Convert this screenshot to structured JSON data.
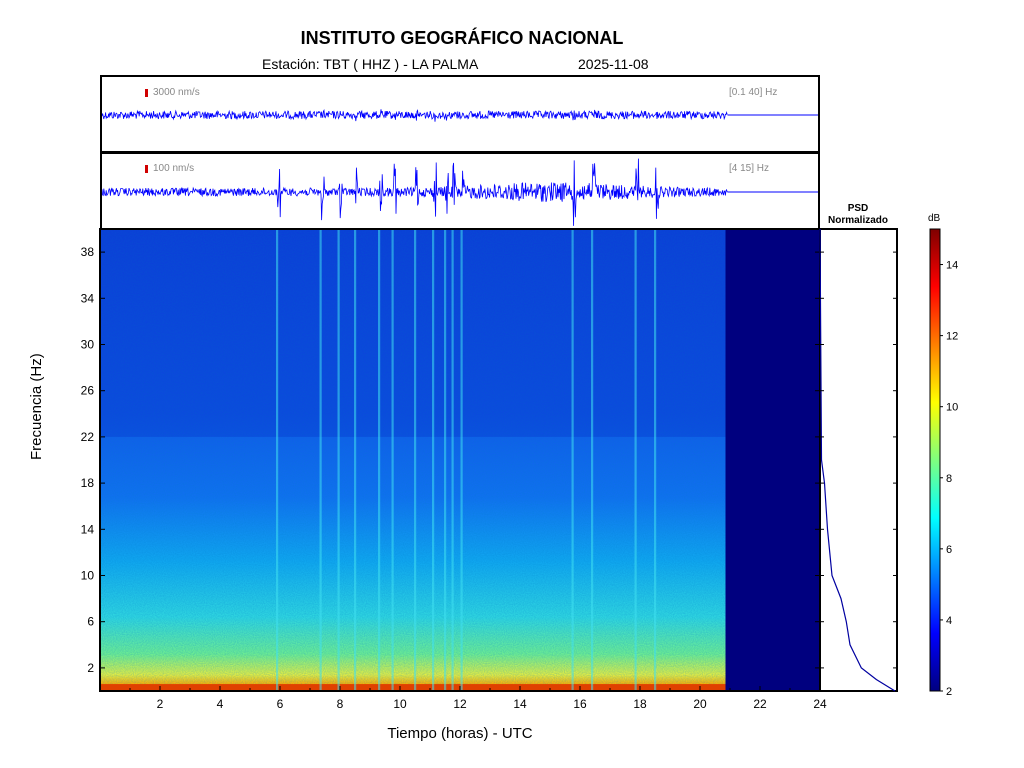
{
  "header": {
    "title": "INSTITUTO GEOGRÁFICO NACIONAL",
    "station": "Estación:  TBT ( HHZ ) - LA PALMA",
    "date": "2025-11-08"
  },
  "traces": [
    {
      "scale": "3000 nm/s",
      "band": "[0.1 40]  Hz"
    },
    {
      "scale": "100 nm/s",
      "band": "[4 15]  Hz"
    }
  ],
  "psd": {
    "title_line1": "PSD",
    "title_line2": "Normalizado"
  },
  "colorbar": {
    "unit": "dB",
    "ticks": [
      2,
      4,
      6,
      8,
      10,
      12,
      14
    ],
    "range": [
      2,
      15
    ],
    "colors": [
      "#00007f",
      "#0000ff",
      "#007fff",
      "#00ffff",
      "#7fff7f",
      "#ffff00",
      "#ff7f00",
      "#ff0000",
      "#7f0000"
    ]
  },
  "chart_data": {
    "type": "heatmap",
    "xlabel": "Tiempo (horas) - UTC",
    "ylabel": "Frecuencia  (Hz)",
    "xlim": [
      0,
      24
    ],
    "ylim": [
      0,
      40
    ],
    "x_ticks": [
      2,
      4,
      6,
      8,
      10,
      12,
      14,
      16,
      18,
      20,
      22,
      24
    ],
    "y_ticks": [
      2,
      6,
      10,
      14,
      18,
      22,
      26,
      30,
      34,
      38
    ],
    "data_end_hour": 20.85,
    "event_hours": [
      5.9,
      7.35,
      7.95,
      8.5,
      9.3,
      9.75,
      10.5,
      11.1,
      11.5,
      11.75,
      12.05,
      15.75,
      16.4,
      17.85,
      18.5
    ],
    "psd_curve": [
      {
        "freq_hz": 40,
        "value": 0.0
      },
      {
        "freq_hz": 20,
        "value": 0.02
      },
      {
        "freq_hz": 18,
        "value": 0.06
      },
      {
        "freq_hz": 14,
        "value": 0.1
      },
      {
        "freq_hz": 10,
        "value": 0.16
      },
      {
        "freq_hz": 8,
        "value": 0.28
      },
      {
        "freq_hz": 6,
        "value": 0.35
      },
      {
        "freq_hz": 4,
        "value": 0.4
      },
      {
        "freq_hz": 2,
        "value": 0.55
      },
      {
        "freq_hz": 1,
        "value": 0.75
      },
      {
        "freq_hz": 0,
        "value": 1.0
      }
    ]
  }
}
